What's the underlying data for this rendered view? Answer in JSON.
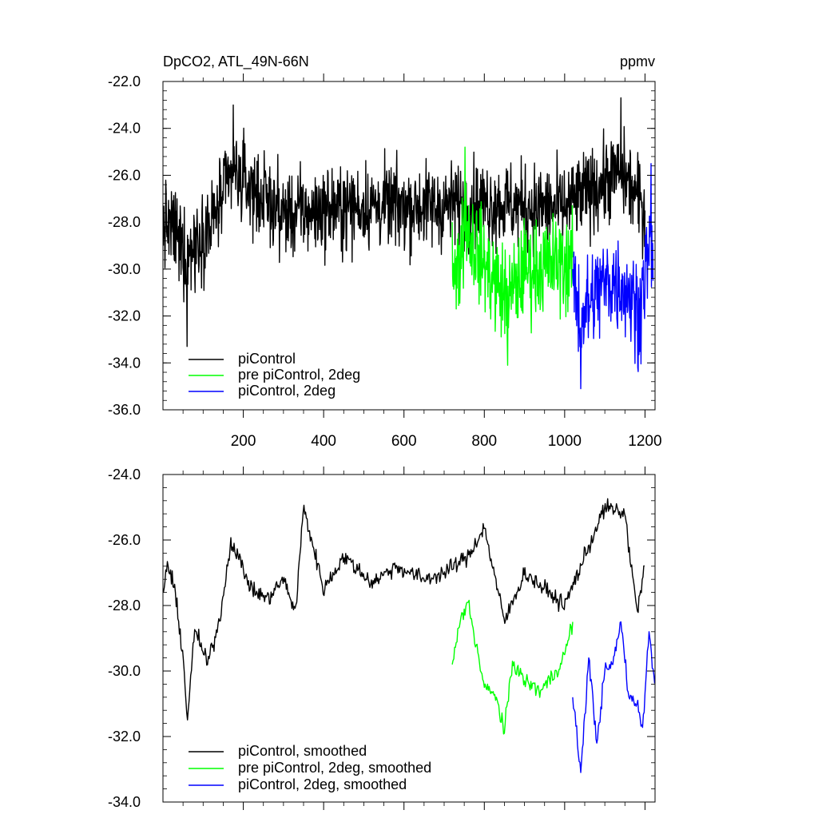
{
  "chart_data": [
    {
      "type": "line",
      "title": "DpCO2, ATL_49N-66N",
      "units": "ppmv",
      "xlabel": "",
      "ylabel": "",
      "xlim": [
        0,
        1225
      ],
      "ylim": [
        -36.0,
        -22.0
      ],
      "yticks": [
        "-22.0",
        "-24.0",
        "-26.0",
        "-28.0",
        "-30.0",
        "-32.0",
        "-34.0",
        "-36.0"
      ],
      "ytick_values": [
        -22,
        -24,
        -26,
        -28,
        -30,
        -32,
        -34,
        -36
      ],
      "xticks": [
        "200",
        "400",
        "600",
        "800",
        "1000",
        "1200"
      ],
      "xtick_values": [
        200,
        400,
        600,
        800,
        1000,
        1200
      ],
      "grid": false,
      "legend_position": "bottom-left",
      "series": [
        {
          "name": "piControl",
          "color": "#000000",
          "x_start": 1,
          "x_end": 1200,
          "mean": -27.5,
          "spread": 1.3,
          "key_points": [
            [
              1,
              -29.0
            ],
            [
              40,
              -30.5
            ],
            [
              60,
              -33.3
            ],
            [
              80,
              -31.0
            ],
            [
              120,
              -29.0
            ],
            [
              175,
              -23.0
            ],
            [
              300,
              -28.0
            ],
            [
              500,
              -27.0
            ],
            [
              700,
              -27.0
            ],
            [
              800,
              -26.5
            ],
            [
              900,
              -27.0
            ],
            [
              1000,
              -27.2
            ],
            [
              1140,
              -22.7
            ],
            [
              1200,
              -27.5
            ]
          ]
        },
        {
          "name": "pre piControl, 2deg",
          "color": "#00ff00",
          "x_start": 720,
          "x_end": 1020,
          "mean": -29.8,
          "spread": 1.5,
          "key_points": [
            [
              720,
              -28.0
            ],
            [
              730,
              -31.7
            ],
            [
              752,
              -24.8
            ],
            [
              800,
              -30.0
            ],
            [
              858,
              -34.1
            ],
            [
              900,
              -30.5
            ],
            [
              950,
              -30.0
            ],
            [
              1020,
              -29.5
            ]
          ]
        },
        {
          "name": "piControl, 2deg",
          "color": "#0000ff",
          "x_start": 1020,
          "x_end": 1220,
          "mean": -30.5,
          "spread": 1.6,
          "key_points": [
            [
              1020,
              -30.0
            ],
            [
              1040,
              -35.1
            ],
            [
              1100,
              -30.5
            ],
            [
              1150,
              -30.8
            ],
            [
              1182,
              -34.2
            ],
            [
              1215,
              -25.5
            ],
            [
              1220,
              -30.5
            ]
          ]
        }
      ]
    },
    {
      "type": "line",
      "title": "",
      "xlabel": "",
      "ylabel": "",
      "xlim": [
        0,
        1225
      ],
      "ylim": [
        -34.0,
        -24.0
      ],
      "yticks": [
        "-24.0",
        "-26.0",
        "-28.0",
        "-30.0",
        "-32.0",
        "-34.0"
      ],
      "ytick_values": [
        -24,
        -26,
        -28,
        -30,
        -32,
        -34
      ],
      "xticks": [],
      "xtick_values": [
        200,
        400,
        600,
        800,
        1000,
        1200
      ],
      "grid": false,
      "legend_position": "bottom-left",
      "series": [
        {
          "name": "piControl, smoothed",
          "color": "#000000",
          "x_start": 1,
          "x_end": 1200,
          "key_points": [
            [
              1,
              -27.6
            ],
            [
              10,
              -26.7
            ],
            [
              30,
              -27.6
            ],
            [
              50,
              -29.5
            ],
            [
              60,
              -31.5
            ],
            [
              80,
              -28.7
            ],
            [
              110,
              -29.8
            ],
            [
              140,
              -28.5
            ],
            [
              170,
              -26.0
            ],
            [
              220,
              -27.5
            ],
            [
              260,
              -27.8
            ],
            [
              300,
              -27.2
            ],
            [
              330,
              -28.2
            ],
            [
              350,
              -25.0
            ],
            [
              400,
              -27.5
            ],
            [
              450,
              -26.5
            ],
            [
              520,
              -27.3
            ],
            [
              580,
              -26.8
            ],
            [
              650,
              -27.2
            ],
            [
              700,
              -27.0
            ],
            [
              760,
              -26.5
            ],
            [
              800,
              -25.6
            ],
            [
              850,
              -28.5
            ],
            [
              900,
              -27.0
            ],
            [
              950,
              -27.5
            ],
            [
              1000,
              -28.0
            ],
            [
              1050,
              -26.5
            ],
            [
              1100,
              -25.0
            ],
            [
              1150,
              -25.2
            ],
            [
              1180,
              -28.2
            ],
            [
              1200,
              -26.8
            ]
          ]
        },
        {
          "name": "pre piControl, 2deg, smoothed",
          "color": "#00ff00",
          "x_start": 720,
          "x_end": 1020,
          "key_points": [
            [
              720,
              -29.8
            ],
            [
              740,
              -28.5
            ],
            [
              760,
              -27.9
            ],
            [
              780,
              -29.2
            ],
            [
              800,
              -30.5
            ],
            [
              830,
              -30.8
            ],
            [
              850,
              -31.9
            ],
            [
              870,
              -29.7
            ],
            [
              900,
              -30.3
            ],
            [
              940,
              -30.6
            ],
            [
              980,
              -30.0
            ],
            [
              1000,
              -29.5
            ],
            [
              1020,
              -28.5
            ]
          ]
        },
        {
          "name": "piControl, 2deg, smoothed",
          "color": "#0000ff",
          "x_start": 1020,
          "x_end": 1225,
          "key_points": [
            [
              1020,
              -30.8
            ],
            [
              1040,
              -33.1
            ],
            [
              1060,
              -29.6
            ],
            [
              1080,
              -32.2
            ],
            [
              1100,
              -30.0
            ],
            [
              1120,
              -29.8
            ],
            [
              1140,
              -28.5
            ],
            [
              1160,
              -30.8
            ],
            [
              1180,
              -31.0
            ],
            [
              1195,
              -31.7
            ],
            [
              1210,
              -28.8
            ],
            [
              1225,
              -30.5
            ]
          ]
        }
      ]
    }
  ]
}
